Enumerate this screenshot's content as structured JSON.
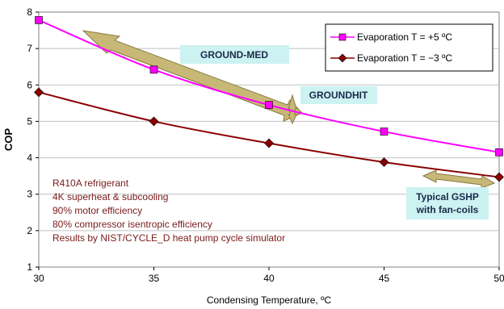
{
  "chart_data": {
    "type": "line",
    "xlabel": "Condensing Temperature, ºC",
    "ylabel": "COP",
    "x": [
      30,
      35,
      40,
      45,
      50
    ],
    "xlim": [
      30,
      50
    ],
    "ylim": [
      1,
      8
    ],
    "xticks": [
      "30",
      "35",
      "40",
      "45",
      "50"
    ],
    "yticks": [
      "1",
      "2",
      "3",
      "4",
      "5",
      "6",
      "7",
      "8"
    ],
    "grid": "horizontal",
    "legend_position": "top-right",
    "series": [
      {
        "name": "Evaporation T = +5 ºC",
        "values": [
          7.78,
          6.42,
          5.45,
          4.72,
          4.15
        ],
        "color": "#ff00ff",
        "marker": "square"
      },
      {
        "name": "Evaporation T = −3 ºC",
        "values": [
          5.8,
          5.0,
          4.4,
          3.88,
          3.47
        ],
        "color": "#8b0000",
        "marker": "diamond"
      }
    ],
    "annotations": [
      "GROUND-MED",
      "GROUNDHIT",
      "Typical GSHP",
      "with fan-coils"
    ],
    "notes": [
      "R410A refrigerant",
      "4K superheat & subcooling",
      "90% motor efficiency",
      "80% compressor isentropic efficiency",
      "Results by NIST/CYCLE_D heat pump cycle simulator"
    ]
  },
  "colors": {
    "plot_background": "#ffffff",
    "grid": "#c0c0c0",
    "callout_fill": "#ccf2f2",
    "arrow_fill": "#c8b878"
  }
}
